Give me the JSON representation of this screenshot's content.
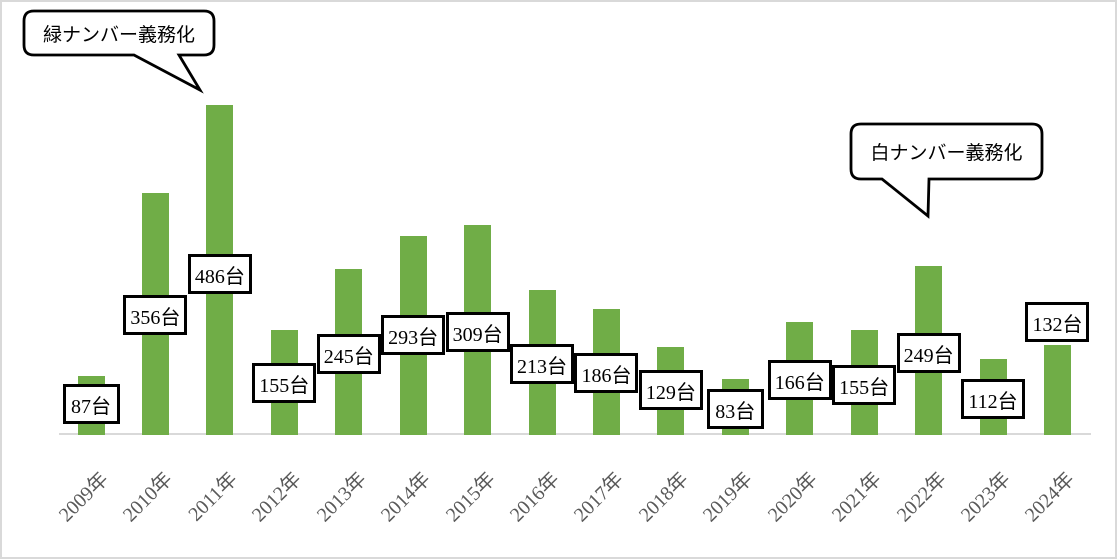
{
  "chart_data": {
    "type": "bar",
    "title": "",
    "xlabel": "",
    "ylabel": "",
    "categories": [
      "2009年",
      "2010年",
      "2011年",
      "2012年",
      "2013年",
      "2014年",
      "2015年",
      "2016年",
      "2017年",
      "2018年",
      "2019年",
      "2020年",
      "2021年",
      "2022年",
      "2023年",
      "2024年"
    ],
    "values": [
      87,
      356,
      486,
      155,
      245,
      293,
      309,
      213,
      186,
      129,
      83,
      166,
      155,
      249,
      112,
      132
    ],
    "data_labels": [
      "87台",
      "356台",
      "486台",
      "155台",
      "245台",
      "293台",
      "309台",
      "213台",
      "186台",
      "129台",
      "83台",
      "166台",
      "155台",
      "249台",
      "112台",
      "132台"
    ],
    "unit_suffix": "台",
    "ylim": [
      0,
      500
    ],
    "grid": false,
    "legend": "none",
    "colors": {
      "bar": "#70AD47",
      "axis_line": "#D9D9D9",
      "chart_border": "#D9D9D9",
      "tick_label": "#595959",
      "data_label_text": "#000000",
      "data_label_border": "#000000",
      "annotation_border": "#000000",
      "annotation_fill": "#FFFFFF"
    },
    "annotations": [
      {
        "text": "緑ナンバー義務化",
        "target_category": "2011年"
      },
      {
        "text": "白ナンバー義務化",
        "target_category": "2022年"
      }
    ]
  }
}
